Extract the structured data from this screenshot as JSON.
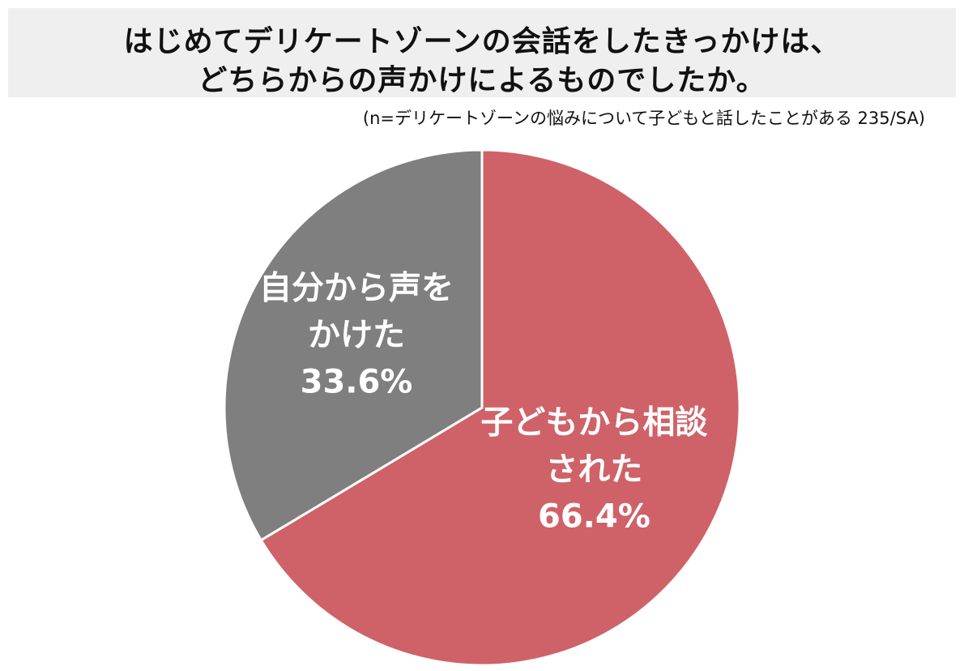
{
  "title_lines": [
    "はじめてデリケートゾーンの会話をしたきっかけは、",
    "どちらからの声かけによるものでしたか。"
  ],
  "subtitle": "(n=デリケートゾーンの悩みについて子どもと話したことがある 235/SA)",
  "chart_data": {
    "type": "pie",
    "title": "はじめてデリケートゾーンの会話をしたきっかけは、どちらからの声かけによるものでしたか。",
    "subtitle": "(n=デリケートゾーンの悩みについて子どもと話したことがある 235/SA)",
    "start": "12 o'clock",
    "direction": "clockwise",
    "slices": [
      {
        "label_lines": [
          "子どもから相談",
          "された"
        ],
        "value": 66.4,
        "value_label": "66.4%",
        "color": "#cf6268"
      },
      {
        "label_lines": [
          "自分から声を",
          "かけた"
        ],
        "value": 33.6,
        "value_label": "33.6%",
        "color": "#7f7f7f"
      }
    ],
    "slice_border_color": "#ffffff"
  }
}
